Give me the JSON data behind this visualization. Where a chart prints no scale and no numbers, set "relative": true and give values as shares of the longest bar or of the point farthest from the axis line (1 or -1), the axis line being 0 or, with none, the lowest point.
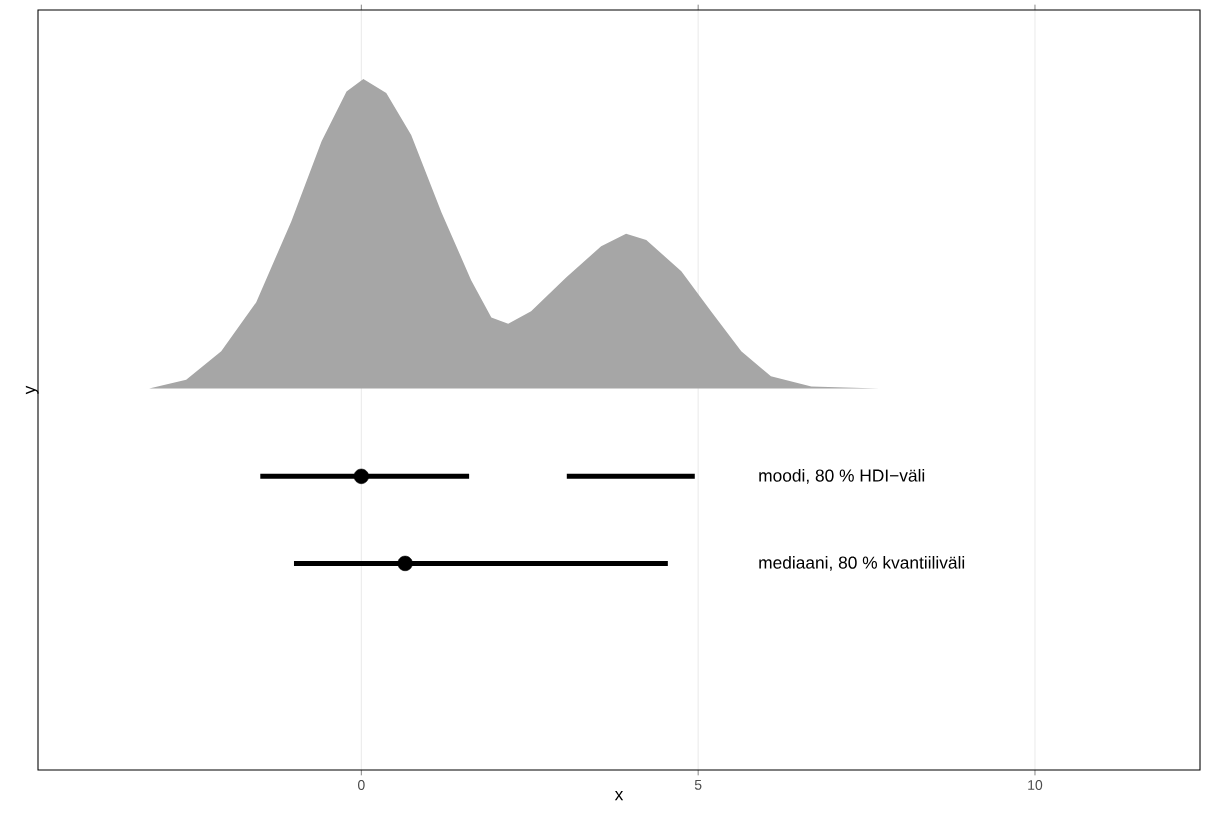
{
  "chart_data": {
    "type": "line",
    "xlabel": "x",
    "ylabel": "y",
    "xlim": [
      -4.8,
      12.45
    ],
    "xticks": [
      0,
      5,
      10
    ],
    "grid": "x",
    "relative": true,
    "tick_labels": "x",
    "series": [
      {
        "type": "area",
        "color": "#a6a6a6",
        "x": [
          -3.15,
          -2.6,
          -2.08,
          -1.56,
          -1.04,
          -0.59,
          -0.22,
          0.03,
          0.37,
          0.74,
          1.19,
          1.63,
          1.93,
          2.18,
          2.52,
          3.04,
          3.56,
          3.93,
          4.23,
          4.75,
          5.19,
          5.64,
          6.08,
          6.68,
          7.69
        ],
        "values": [
          0.552,
          0.565,
          0.606,
          0.677,
          0.794,
          0.91,
          0.982,
          1,
          0.98,
          0.919,
          0.807,
          0.709,
          0.655,
          0.646,
          0.664,
          0.713,
          0.758,
          0.776,
          0.767,
          0.722,
          0.664,
          0.606,
          0.57,
          0.555,
          0.552
        ]
      },
      {
        "name": "moodi, 80 % HDI−väli",
        "color": "#000000",
        "x": [
          -1.5,
          1.6
        ],
        "values": [
          0.425,
          0.425
        ]
      },
      {
        "color": "#000000",
        "x": [
          3.05,
          4.95
        ],
        "values": [
          0.425,
          0.425
        ]
      },
      {
        "type": "scatter",
        "color": "#000000",
        "x": [
          0
        ],
        "values": [
          0.425
        ]
      },
      {
        "name": "mediaani, 80 % kvantiiliväli",
        "color": "#000000",
        "x": [
          -1.0,
          4.55
        ],
        "values": [
          0.299,
          0.299
        ]
      },
      {
        "type": "scatter",
        "color": "#000000",
        "x": [
          0.65
        ],
        "values": [
          0.299
        ]
      }
    ]
  }
}
